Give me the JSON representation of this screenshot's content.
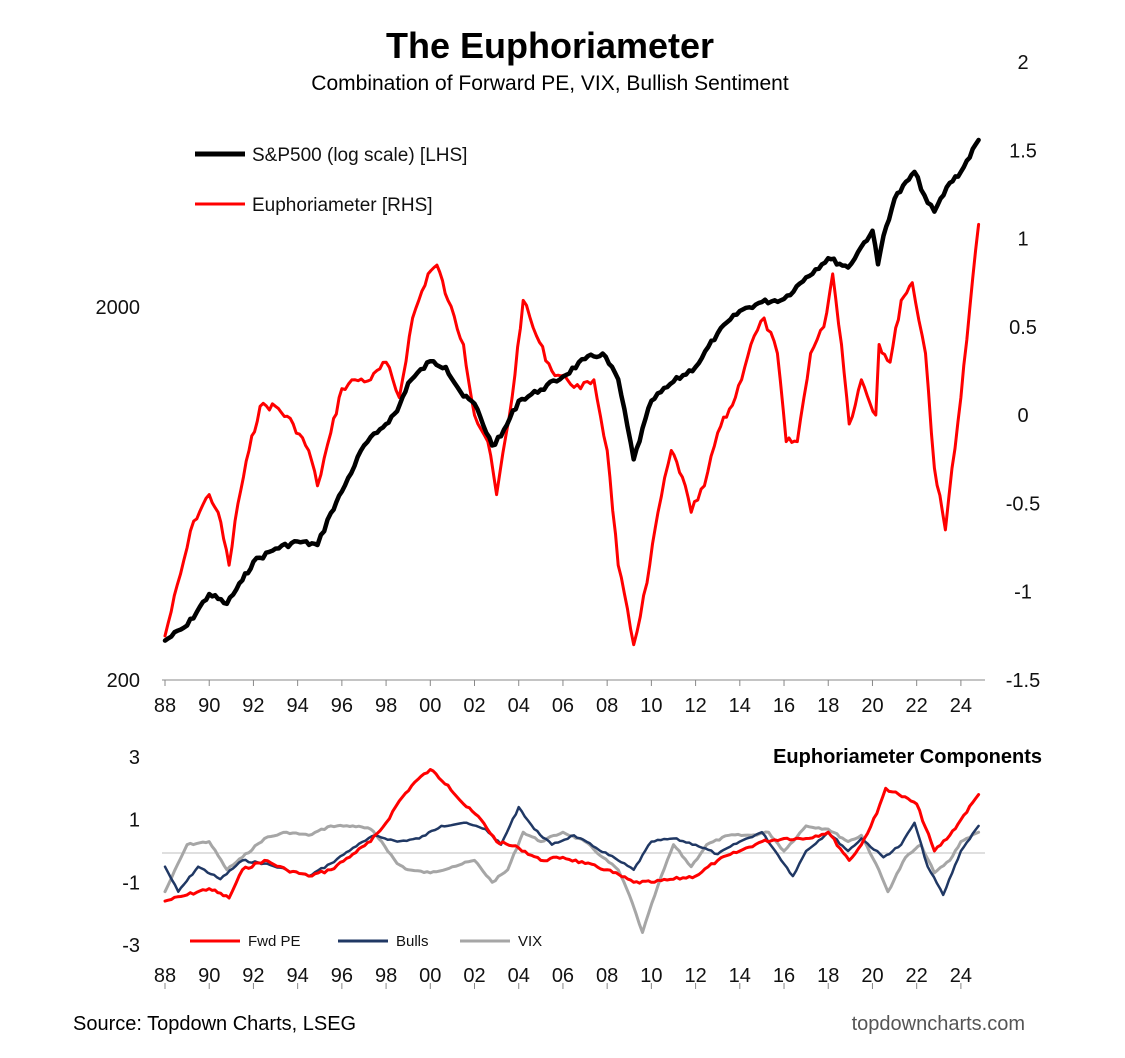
{
  "chart_data": [
    {
      "type": "line",
      "title": "The Euphoriameter",
      "subtitle": "Combination of Forward PE, VIX, Bullish Sentiment",
      "x_ticks": [
        "88",
        "90",
        "92",
        "94",
        "96",
        "98",
        "00",
        "02",
        "04",
        "06",
        "08",
        "10",
        "12",
        "14",
        "16",
        "18",
        "20",
        "22",
        "24"
      ],
      "xlim": [
        1988,
        2025
      ],
      "left_axis": {
        "scale": "log",
        "ticks": [
          "2000",
          "200"
        ],
        "ylim": [
          200,
          5200
        ]
      },
      "right_axis": {
        "ticks": [
          "2",
          "1.5",
          "1",
          "0.5",
          "0",
          "-0.5",
          "-1",
          "-1.5"
        ],
        "ylim": [
          -1.5,
          2
        ]
      },
      "legend_position": "top-left",
      "series": [
        {
          "name": "S&P500 (log scale) [LHS]",
          "axis": "left",
          "color": "#000000",
          "x": [
            1988,
            1989,
            1990,
            1990.8,
            1991.5,
            1992,
            1993,
            1994,
            1994.9,
            1995.5,
            1996,
            1997,
            1997.6,
            1998.5,
            1999,
            2000,
            2000.7,
            2001.5,
            2002,
            2002.8,
            2003.2,
            2004,
            2005,
            2006,
            2007,
            2007.8,
            2008.5,
            2009.2,
            2010,
            2011,
            2012,
            2013,
            2014,
            2015,
            2016,
            2017,
            2018,
            2018.9,
            2019.5,
            2020,
            2020.25,
            2020.5,
            2021,
            2021.9,
            2022.5,
            2022.8,
            2023.5,
            2024,
            2024.8
          ],
          "y": [
            255,
            280,
            340,
            320,
            370,
            415,
            450,
            470,
            460,
            560,
            640,
            850,
            920,
            1050,
            1250,
            1430,
            1380,
            1150,
            1100,
            850,
            900,
            1120,
            1200,
            1300,
            1450,
            1500,
            1280,
            780,
            1120,
            1260,
            1380,
            1700,
            1950,
            2060,
            2100,
            2400,
            2700,
            2550,
            2900,
            3200,
            2600,
            3100,
            3900,
            4600,
            3800,
            3600,
            4300,
            4600,
            5600
          ]
        },
        {
          "name": "Euphoriameter [RHS]",
          "axis": "right",
          "color": "#ff0000",
          "x": [
            1988,
            1988.7,
            1989.3,
            1990,
            1990.4,
            1990.9,
            1991.3,
            1991.8,
            1992.3,
            1993,
            1993.8,
            1994.5,
            1994.9,
            1995.5,
            1996,
            1996.6,
            1997.3,
            1998,
            1998.6,
            1999.2,
            1999.9,
            2000.3,
            2000.8,
            2001.5,
            2002,
            2002.6,
            2003,
            2003.7,
            2004.2,
            2004.8,
            2005.5,
            2006.2,
            2006.8,
            2007.4,
            2008,
            2008.5,
            2009.2,
            2009.8,
            2010.3,
            2010.9,
            2011.4,
            2011.8,
            2012.4,
            2013,
            2013.8,
            2014.5,
            2015.1,
            2015.7,
            2016.1,
            2016.6,
            2017.2,
            2017.8,
            2018.2,
            2018.6,
            2018.95,
            2019.5,
            2020.15,
            2020.3,
            2020.8,
            2021.3,
            2021.8,
            2022.4,
            2022.8,
            2023.3,
            2023.6,
            2024,
            2024.4,
            2024.8
          ],
          "y": [
            -1.25,
            -0.9,
            -0.6,
            -0.45,
            -0.55,
            -0.85,
            -0.5,
            -0.2,
            0.05,
            0.05,
            -0.05,
            -0.2,
            -0.4,
            -0.1,
            0.15,
            0.2,
            0.2,
            0.3,
            0.1,
            0.55,
            0.8,
            0.85,
            0.65,
            0.4,
            0.0,
            -0.15,
            -0.45,
            0.1,
            0.65,
            0.45,
            0.25,
            0.2,
            0.15,
            0.2,
            -0.2,
            -0.85,
            -1.3,
            -0.95,
            -0.55,
            -0.2,
            -0.35,
            -0.55,
            -0.4,
            -0.1,
            0.1,
            0.4,
            0.55,
            0.35,
            -0.15,
            -0.15,
            0.35,
            0.5,
            0.8,
            0.4,
            -0.05,
            0.2,
            0.0,
            0.4,
            0.3,
            0.65,
            0.75,
            0.35,
            -0.3,
            -0.65,
            -0.3,
            0.1,
            0.6,
            1.08
          ]
        }
      ]
    },
    {
      "type": "line",
      "title": "Euphoriameter Components",
      "x_ticks": [
        "88",
        "90",
        "92",
        "94",
        "96",
        "98",
        "00",
        "02",
        "04",
        "06",
        "08",
        "10",
        "12",
        "14",
        "16",
        "18",
        "20",
        "22",
        "24"
      ],
      "xlim": [
        1988,
        2025
      ],
      "y_ticks": [
        "3",
        "1",
        "-1",
        "-3"
      ],
      "ylim": [
        -3,
        3
      ],
      "legend_position": "bottom-left",
      "series": [
        {
          "name": "Fwd PE",
          "color": "#ff0000",
          "x": [
            1988,
            1989,
            1990,
            1990.9,
            1991.5,
            1992.5,
            1993.5,
            1994.5,
            1995.5,
            1996.5,
            1997.3,
            1998,
            1998.6,
            1999.3,
            2000,
            2000.8,
            2001.5,
            2002.3,
            2003,
            2004,
            2005,
            2006,
            2007,
            2008,
            2009.2,
            2010,
            2011,
            2012,
            2013,
            2014,
            2015,
            2016,
            2017,
            2018,
            2018.95,
            2019.5,
            2020.2,
            2020.6,
            2021.2,
            2022,
            2022.8,
            2023.5,
            2024,
            2024.8
          ],
          "y": [
            -1.6,
            -1.4,
            -1.2,
            -1.5,
            -0.6,
            -0.3,
            -0.6,
            -0.8,
            -0.6,
            -0.1,
            0.3,
            0.9,
            1.6,
            2.2,
            2.6,
            2.1,
            1.5,
            1.0,
            0.3,
            0.1,
            -0.3,
            -0.2,
            -0.4,
            -0.6,
            -1.0,
            -1.0,
            -0.9,
            -0.8,
            -0.3,
            0.0,
            0.3,
            0.4,
            0.4,
            0.6,
            -0.3,
            0.2,
            1.2,
            2.0,
            1.8,
            1.5,
            0.0,
            0.5,
            1.0,
            1.8
          ]
        },
        {
          "name": "Bulls",
          "color": "#203864",
          "x": [
            1988,
            1988.6,
            1989.5,
            1990.5,
            1991.5,
            1992.5,
            1993.5,
            1994.5,
            1995.5,
            1996.5,
            1997.5,
            1998.5,
            1999.5,
            2000.5,
            2001.5,
            2002.5,
            2003.2,
            2004,
            2004.7,
            2005.5,
            2006.5,
            2007.5,
            2008.5,
            2009.2,
            2010,
            2011,
            2012,
            2013,
            2014,
            2015,
            2015.6,
            2016.4,
            2017,
            2018,
            2018.9,
            2019.5,
            2020.5,
            2021.3,
            2021.9,
            2022.5,
            2023.2,
            2024,
            2024.8
          ],
          "y": [
            -0.5,
            -1.3,
            -0.5,
            -0.9,
            -0.3,
            -0.4,
            -0.6,
            -0.8,
            -0.4,
            0.1,
            0.5,
            0.3,
            0.4,
            0.8,
            0.9,
            0.7,
            0.2,
            1.4,
            0.7,
            0.2,
            0.5,
            0.1,
            -0.3,
            -0.6,
            0.3,
            0.4,
            0.2,
            -0.1,
            0.3,
            0.6,
            0.0,
            -0.8,
            0.0,
            0.6,
            0.0,
            0.4,
            -0.2,
            0.2,
            0.9,
            -0.5,
            -1.4,
            0.0,
            0.8
          ]
        },
        {
          "name": "VIX",
          "color": "#a6a6a6",
          "x": [
            1988,
            1989,
            1990,
            1990.8,
            1991.5,
            1992.5,
            1993.5,
            1994.5,
            1995.5,
            1996.5,
            1997.3,
            1997.8,
            1998.5,
            1999,
            2000,
            2001,
            2002,
            2002.8,
            2003.5,
            2004.2,
            2005,
            2006,
            2007,
            2007.8,
            2008.5,
            2009,
            2009.6,
            2010.3,
            2011,
            2011.8,
            2012.5,
            2013.5,
            2014.5,
            2015.3,
            2016,
            2017,
            2018,
            2018.9,
            2019.5,
            2020.15,
            2020.7,
            2021.5,
            2022.2,
            2022.8,
            2023.5,
            2024,
            2024.8
          ],
          "y": [
            -1.3,
            0.2,
            0.3,
            -0.6,
            -0.2,
            0.4,
            0.6,
            0.5,
            0.8,
            0.8,
            0.7,
            0.3,
            -0.4,
            -0.6,
            -0.7,
            -0.5,
            -0.3,
            -1.0,
            -0.6,
            0.6,
            0.3,
            0.6,
            0.3,
            -0.2,
            -0.6,
            -1.4,
            -2.6,
            -1.1,
            0.2,
            -0.5,
            0.2,
            0.5,
            0.5,
            0.6,
            0.0,
            0.8,
            0.7,
            0.3,
            0.5,
            -0.4,
            -1.3,
            -0.2,
            0.2,
            -0.7,
            -0.3,
            0.3,
            0.6
          ]
        }
      ]
    }
  ],
  "footer": {
    "source": "Source: Topdown Charts, LSEG",
    "brand": "topdowncharts.com"
  }
}
